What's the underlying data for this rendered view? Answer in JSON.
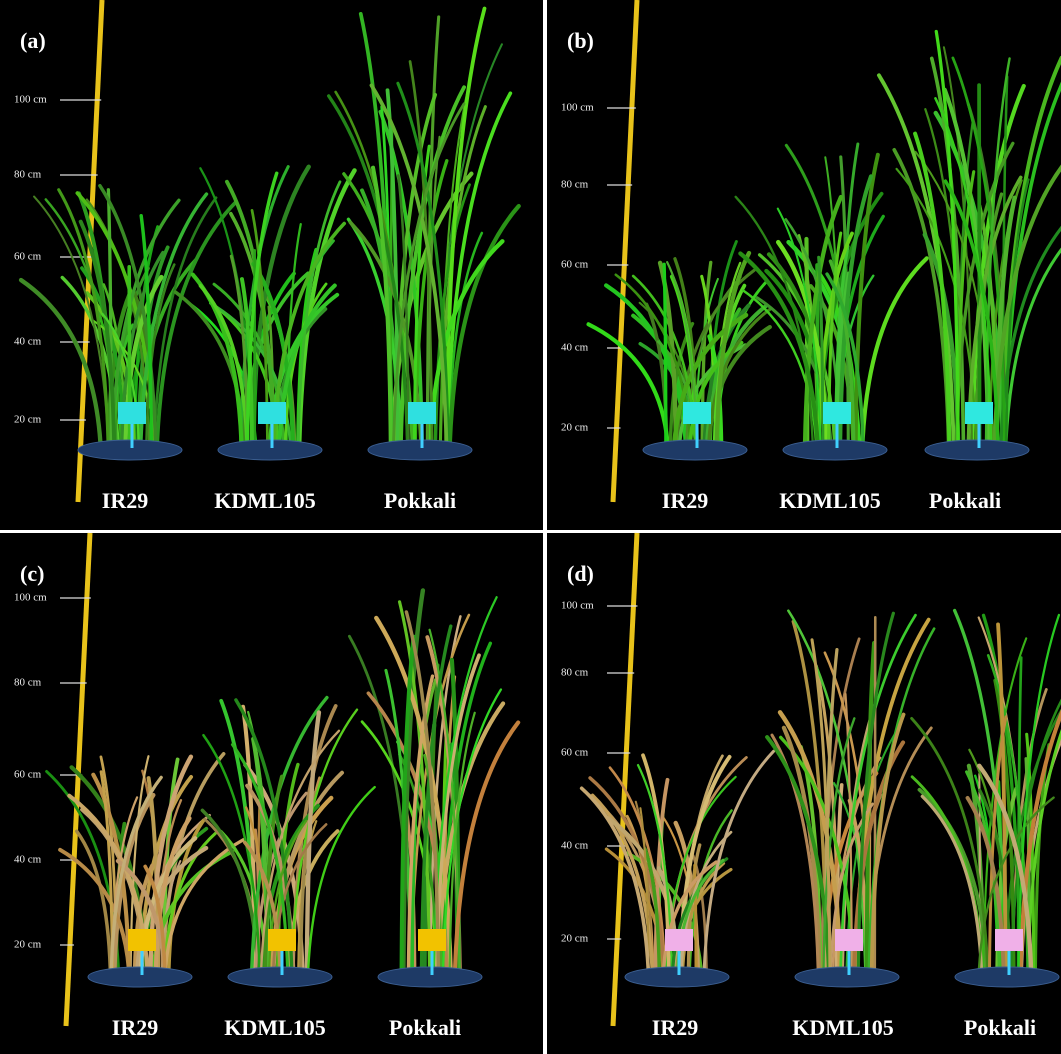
{
  "panels": [
    {
      "label": "(a)",
      "scale": [
        "100 cm",
        "80 cm",
        "60 cm",
        "40 cm",
        "20 cm"
      ],
      "varieties": [
        "IR29",
        "KDML105",
        "Pokkali"
      ]
    },
    {
      "label": "(b)",
      "scale": [
        "100 cm",
        "80 cm",
        "60 cm",
        "40 cm",
        "20 cm"
      ],
      "varieties": [
        "IR29",
        "KDML105",
        "Pokkali"
      ]
    },
    {
      "label": "(c)",
      "scale": [
        "100 cm",
        "80 cm",
        "60 cm",
        "40 cm",
        "20 cm"
      ],
      "varieties": [
        "IR29",
        "KDML105",
        "Pokkali"
      ]
    },
    {
      "label": "(d)",
      "scale": [
        "100 cm",
        "80 cm",
        "60 cm",
        "40 cm",
        "20 cm"
      ],
      "varieties": [
        "IR29",
        "KDML105",
        "Pokkali"
      ]
    }
  ]
}
